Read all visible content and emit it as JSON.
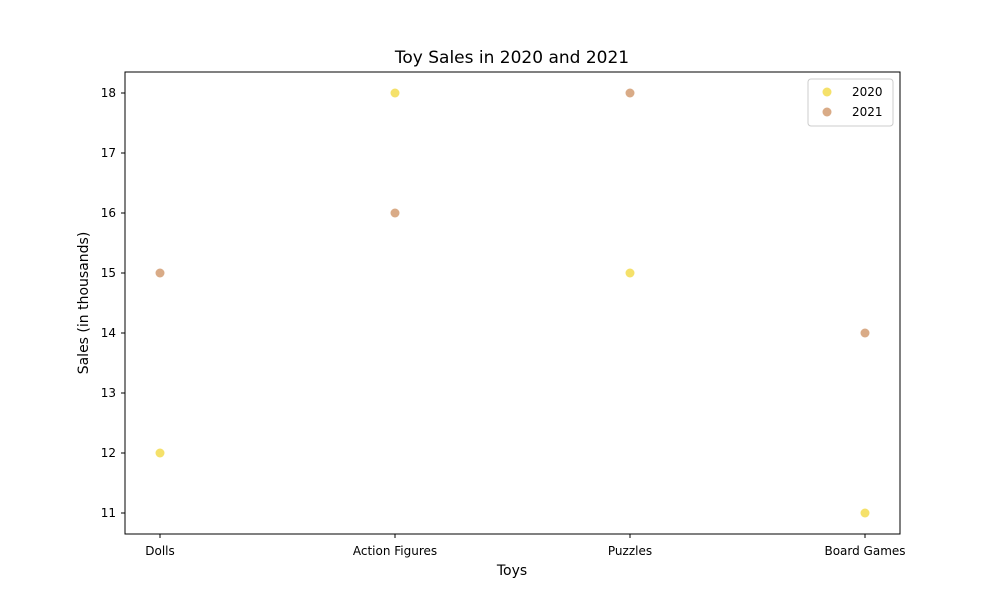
{
  "chart_data": {
    "type": "scatter",
    "title": "Toy Sales in 2020 and 2021",
    "xlabel": "Toys",
    "ylabel": "Sales (in thousands)",
    "categories": [
      "Dolls",
      "Action Figures",
      "Puzzles",
      "Board Games"
    ],
    "ylim": [
      10.65,
      18.35
    ],
    "yticks": [
      11,
      12,
      13,
      14,
      15,
      16,
      17,
      18
    ],
    "grid": false,
    "legend_position": "top-right",
    "series": [
      {
        "name": "2020",
        "color": "#f5e16a",
        "values": [
          12,
          18,
          15,
          11
        ]
      },
      {
        "name": "2021",
        "color": "#d9ab87",
        "values": [
          15,
          16,
          18,
          14
        ]
      }
    ]
  }
}
